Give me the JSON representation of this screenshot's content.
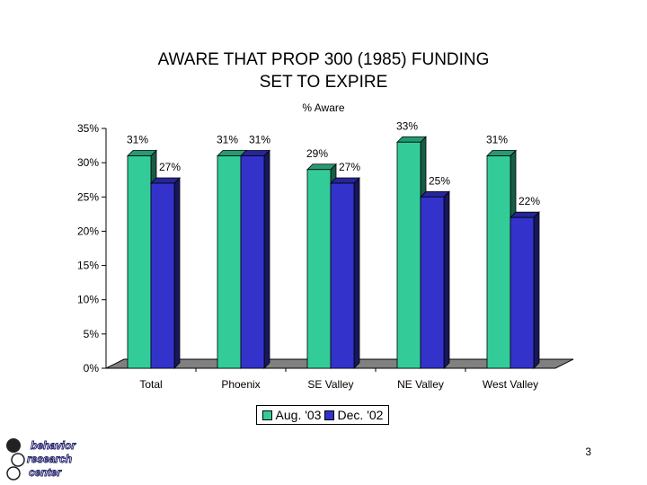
{
  "chart_data": {
    "type": "bar",
    "title_lines": [
      "AWARE THAT PROP 300 (1985) FUNDING",
      "SET TO EXPIRE"
    ],
    "subtitle": "% Aware",
    "categories": [
      "Total",
      "Phoenix",
      "SE Valley",
      "NE Valley",
      "West Valley"
    ],
    "series": [
      {
        "name": "Aug. '03",
        "values": [
          31,
          31,
          29,
          33,
          31
        ],
        "labels": [
          "31%",
          "31%",
          "29%",
          "33%",
          "31%"
        ],
        "color": "#33cc99"
      },
      {
        "name": "Dec. '02",
        "values": [
          27,
          31,
          27,
          25,
          22
        ],
        "labels": [
          "27%",
          "31%",
          "27%",
          "25%",
          "22%"
        ],
        "color": "#3333cc"
      }
    ],
    "y_ticks": [
      "0%",
      "5%",
      "10%",
      "15%",
      "20%",
      "25%",
      "30%",
      "35%"
    ],
    "ylim": [
      0,
      35
    ],
    "grid": false,
    "legend_position": "bottom"
  },
  "page_number": "3",
  "logo_text": [
    "behavior",
    "research",
    "center"
  ]
}
